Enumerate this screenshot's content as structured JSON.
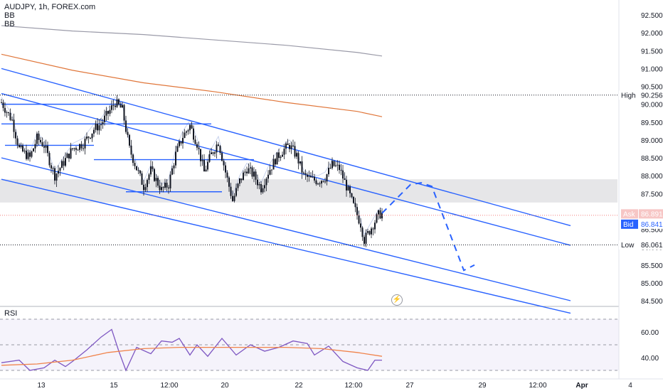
{
  "legend": {
    "title": "AUDJPY, 1h, FOREX.com",
    "indicator_1": "BB",
    "indicator_2": "BB"
  },
  "rsi_label": "RSI",
  "price_axis": {
    "ticks": [
      "92.500",
      "92.000",
      "91.500",
      "91.000",
      "90.500",
      "90.000",
      "89.500",
      "89.000",
      "88.500",
      "88.000",
      "87.500",
      "87.000",
      "86.500",
      "86.000",
      "85.500",
      "85.000",
      "84.500"
    ],
    "min": 84.5,
    "max": 92.5
  },
  "rsi_axis": {
    "ticks": [
      "60.00",
      "40.00"
    ]
  },
  "time_axis": {
    "ticks": [
      "13",
      "15",
      "12:00",
      "20",
      "22",
      "12:00",
      "27",
      "29",
      "12:00",
      "Apr",
      "4"
    ]
  },
  "markers": {
    "high_label": "High",
    "high_value": "90.256",
    "low_label": "Low",
    "low_value": "86.061",
    "ask_label": "Ask",
    "ask_value": "86.891",
    "bid_label": "Bid",
    "bid_value": "86.841"
  },
  "zap_icon": "lightning-icon",
  "colors": {
    "channel": "#2962ff",
    "up": "#26a69a",
    "down": "#ef5350",
    "candle": "#131722",
    "ma_orange": "#e0763a",
    "ma_gray": "#9a9aa8",
    "rsi": "#7e57c2",
    "rsi_ma": "#f0834b",
    "zone": "#e6e6e8"
  },
  "chart_data": {
    "type": "candlestick",
    "title": "AUDJPY, 1h, FOREX.com",
    "ylim": [
      84.5,
      92.5
    ],
    "high": 90.256,
    "low": 86.061,
    "ask": 86.891,
    "bid": 86.841,
    "close_path": [
      [
        0,
        90.05
      ],
      [
        3,
        89.55
      ],
      [
        5,
        88.75
      ],
      [
        8,
        88.5
      ],
      [
        10,
        89.05
      ],
      [
        12,
        88.85
      ],
      [
        15,
        88.0
      ],
      [
        18,
        88.45
      ],
      [
        20,
        88.75
      ],
      [
        23,
        88.9
      ],
      [
        26,
        89.3
      ],
      [
        28,
        89.45
      ],
      [
        30,
        89.75
      ],
      [
        32,
        90.05
      ],
      [
        34,
        89.85
      ],
      [
        36,
        88.75
      ],
      [
        38,
        88.2
      ],
      [
        40,
        87.7
      ],
      [
        42,
        88.15
      ],
      [
        45,
        87.6
      ],
      [
        47,
        87.75
      ],
      [
        49,
        88.6
      ],
      [
        51,
        89.1
      ],
      [
        53,
        89.4
      ],
      [
        55,
        88.9
      ],
      [
        57,
        88.1
      ],
      [
        59,
        88.6
      ],
      [
        61,
        88.95
      ],
      [
        63,
        88.1
      ],
      [
        65,
        87.3
      ],
      [
        67,
        87.85
      ],
      [
        69,
        88.2
      ],
      [
        71,
        88.0
      ],
      [
        73,
        87.65
      ],
      [
        75,
        88.1
      ],
      [
        77,
        88.45
      ],
      [
        79,
        88.7
      ],
      [
        81,
        88.85
      ],
      [
        83,
        88.55
      ],
      [
        85,
        88.0
      ],
      [
        87,
        87.9
      ],
      [
        89,
        87.85
      ],
      [
        91,
        87.95
      ],
      [
        93,
        88.3
      ],
      [
        95,
        88.2
      ],
      [
        97,
        87.7
      ],
      [
        99,
        87.15
      ],
      [
        101,
        86.65
      ],
      [
        102,
        86.2
      ],
      [
        104,
        86.55
      ],
      [
        106,
        86.9
      ],
      [
        107,
        86.95
      ]
    ],
    "channel_lines": [
      {
        "p1": [
          0,
          91.0
        ],
        "p2": [
          160,
          86.6
        ]
      },
      {
        "p1": [
          0,
          90.3
        ],
        "p2": [
          160,
          86.05
        ]
      },
      {
        "p1": [
          0,
          88.5
        ],
        "p2": [
          160,
          84.5
        ]
      },
      {
        "p1": [
          0,
          87.9
        ],
        "p2": [
          160,
          84.15
        ]
      }
    ],
    "horizontal_levels": [
      {
        "y": 90.0,
        "x1": 0,
        "x2": 34
      },
      {
        "y": 89.45,
        "x1": 0,
        "x2": 59
      },
      {
        "y": 88.85,
        "x1": 1,
        "x2": 26
      },
      {
        "y": 88.45,
        "x1": 26,
        "x2": 71
      },
      {
        "y": 87.55,
        "x1": 35,
        "x2": 62
      }
    ],
    "zone": [
      87.25,
      87.9
    ],
    "ma_orange": [
      [
        0,
        91.4
      ],
      [
        20,
        90.95
      ],
      [
        40,
        90.6
      ],
      [
        60,
        90.35
      ],
      [
        80,
        90.05
      ],
      [
        100,
        89.8
      ],
      [
        107,
        89.65
      ]
    ],
    "ma_gray": [
      [
        0,
        92.2
      ],
      [
        20,
        92.05
      ],
      [
        40,
        91.95
      ],
      [
        60,
        91.8
      ],
      [
        80,
        91.65
      ],
      [
        100,
        91.45
      ],
      [
        107,
        91.35
      ]
    ],
    "projection": [
      [
        107,
        86.95
      ],
      [
        115,
        87.75
      ],
      [
        118,
        87.8
      ],
      [
        121,
        87.7
      ],
      [
        126,
        86.4
      ],
      [
        130,
        85.35
      ],
      [
        133,
        85.5
      ]
    ],
    "rsi_ylim": [
      25,
      75
    ],
    "rsi_levels": [
      70,
      50,
      30
    ],
    "rsi": [
      [
        0,
        36
      ],
      [
        5,
        38
      ],
      [
        8,
        30
      ],
      [
        12,
        32
      ],
      [
        15,
        38
      ],
      [
        18,
        33
      ],
      [
        20,
        37
      ],
      [
        24,
        46
      ],
      [
        28,
        56
      ],
      [
        31,
        62
      ],
      [
        33,
        45
      ],
      [
        35,
        30
      ],
      [
        38,
        48
      ],
      [
        42,
        43
      ],
      [
        45,
        53
      ],
      [
        48,
        52
      ],
      [
        50,
        55
      ],
      [
        53,
        42
      ],
      [
        55,
        50
      ],
      [
        58,
        41
      ],
      [
        62,
        55
      ],
      [
        66,
        42
      ],
      [
        70,
        50
      ],
      [
        74,
        45
      ],
      [
        78,
        48
      ],
      [
        82,
        53
      ],
      [
        86,
        51
      ],
      [
        88,
        42
      ],
      [
        92,
        49
      ],
      [
        96,
        37
      ],
      [
        100,
        32
      ],
      [
        103,
        30
      ],
      [
        105,
        38
      ],
      [
        107,
        38
      ]
    ],
    "rsi_ma": [
      [
        0,
        34
      ],
      [
        10,
        35
      ],
      [
        20,
        38
      ],
      [
        30,
        44
      ],
      [
        40,
        47
      ],
      [
        50,
        48
      ],
      [
        60,
        48
      ],
      [
        70,
        48
      ],
      [
        80,
        48
      ],
      [
        90,
        47
      ],
      [
        100,
        44
      ],
      [
        107,
        41
      ]
    ]
  }
}
